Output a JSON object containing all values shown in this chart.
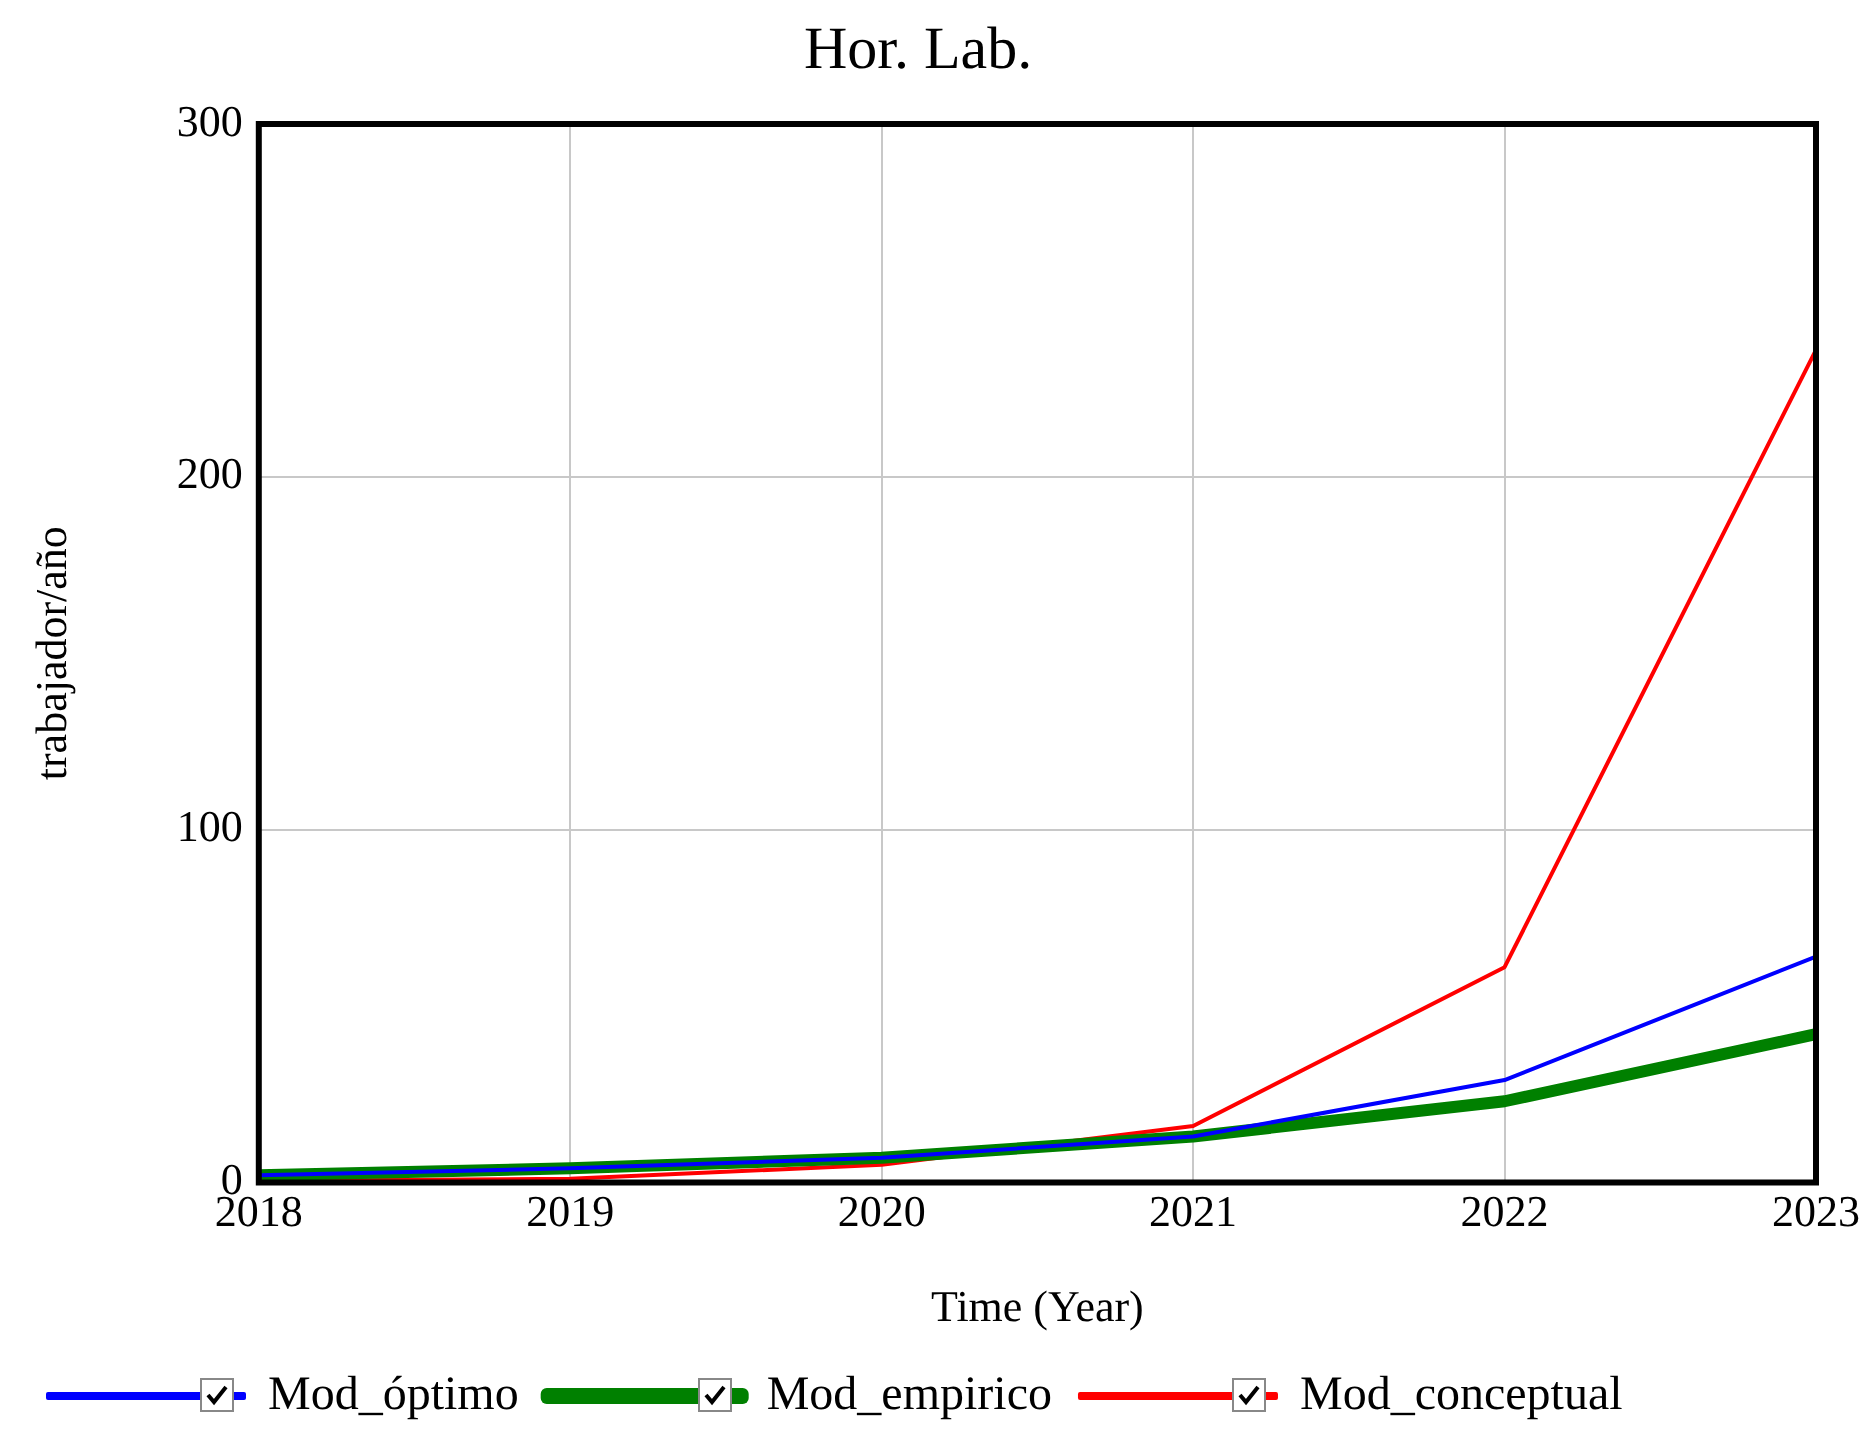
{
  "chart_data": {
    "type": "line",
    "title": "Hor. Lab.",
    "xlabel": "Time (Year)",
    "ylabel": "trabajador/año",
    "x": [
      2018,
      2019,
      2020,
      2021,
      2022,
      2023
    ],
    "xlim": [
      2018,
      2023
    ],
    "xticks": [
      2018,
      2019,
      2020,
      2021,
      2022,
      2023
    ],
    "ylim": [
      0,
      300
    ],
    "yticks": [
      0,
      100,
      200,
      300
    ],
    "grid": true,
    "legend": "bottom",
    "series": [
      {
        "name": "Mod_óptimo",
        "color": "#0000ff",
        "values": [
          2,
          4,
          7,
          13,
          29,
          64
        ]
      },
      {
        "name": "Mod_empirico",
        "color": "#008000",
        "values": [
          2,
          4,
          7,
          13,
          23,
          42
        ]
      },
      {
        "name": "Mod_conceptual",
        "color": "#ff0000",
        "values": [
          0.5,
          1,
          5,
          16,
          61,
          236
        ]
      }
    ]
  }
}
